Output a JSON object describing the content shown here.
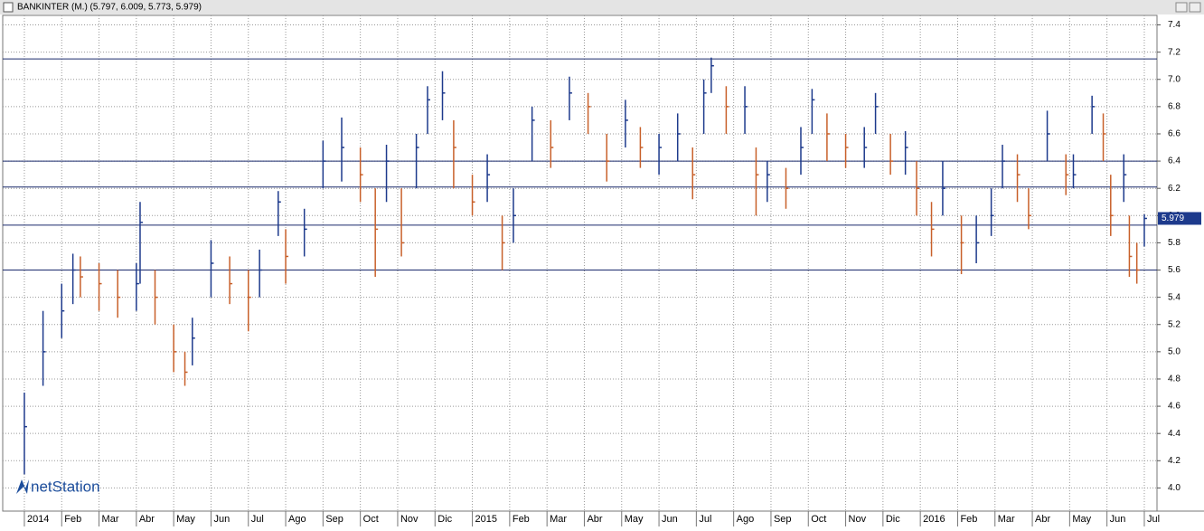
{
  "chart_data": {
    "type": "ohlc",
    "title": "BANKINTER (M.) (5.797, 6.009, 5.773, 5.979)",
    "logo": "netStation",
    "x": [
      0,
      0.5,
      1,
      1.3,
      1.5,
      2,
      2.5,
      3,
      3.1,
      3.5,
      4,
      4.3,
      4.5,
      5,
      5.5,
      6,
      6.3,
      6.8,
      7,
      7.5,
      8,
      8.5,
      9,
      9.4,
      9.7,
      10.1,
      10.5,
      10.8,
      11.2,
      11.5,
      12,
      12.4,
      12.8,
      13.1,
      13.6,
      14.1,
      14.6,
      15.1,
      15.6,
      16.1,
      16.5,
      17,
      17.5,
      17.9,
      18.2,
      18.4,
      18.8,
      19.3,
      19.6,
      19.9,
      20.4,
      20.8,
      21.1,
      21.5,
      22,
      22.5,
      22.8,
      23.2,
      23.6,
      23.9,
      24.3,
      24.6,
      25.1,
      25.5,
      25.9,
      26.2,
      26.6,
      26.9,
      27.4,
      27.9,
      28.1,
      28.6,
      28.9,
      29.1,
      29.45,
      29.6,
      29.8,
      30
    ],
    "close": [
      4.45,
      5.0,
      5.3,
      5.6,
      5.55,
      5.5,
      5.4,
      5.5,
      5.95,
      5.4,
      5.0,
      4.85,
      5.1,
      5.65,
      5.5,
      5.4,
      5.6,
      6.1,
      5.7,
      5.9,
      6.4,
      6.5,
      6.3,
      5.9,
      6.4,
      5.8,
      6.5,
      6.85,
      6.9,
      6.5,
      6.1,
      6.3,
      5.8,
      6.0,
      6.7,
      6.5,
      6.9,
      6.8,
      6.4,
      6.7,
      6.5,
      6.5,
      6.6,
      6.3,
      6.9,
      7.1,
      6.8,
      6.8,
      6.3,
      6.3,
      6.2,
      6.5,
      6.85,
      6.6,
      6.5,
      6.5,
      6.8,
      6.4,
      6.5,
      6.2,
      5.9,
      6.2,
      5.8,
      5.8,
      6.0,
      6.4,
      6.3,
      6.0,
      6.6,
      6.3,
      6.3,
      6.8,
      6.6,
      6.0,
      6.3,
      5.7,
      5.6,
      5.979
    ],
    "high": [
      4.7,
      5.3,
      5.5,
      5.72,
      5.7,
      5.65,
      5.6,
      5.65,
      6.1,
      5.6,
      5.2,
      5.0,
      5.25,
      5.82,
      5.7,
      5.6,
      5.75,
      6.18,
      5.9,
      6.05,
      6.55,
      6.72,
      6.5,
      6.2,
      6.52,
      6.2,
      6.6,
      6.95,
      7.06,
      6.7,
      6.3,
      6.45,
      6.0,
      6.2,
      6.8,
      6.7,
      7.02,
      6.9,
      6.6,
      6.85,
      6.65,
      6.6,
      6.75,
      6.5,
      7.0,
      7.16,
      6.95,
      6.95,
      6.5,
      6.4,
      6.35,
      6.65,
      6.93,
      6.75,
      6.6,
      6.65,
      6.9,
      6.6,
      6.62,
      6.4,
      6.1,
      6.4,
      6.0,
      6.0,
      6.2,
      6.52,
      6.45,
      6.2,
      6.77,
      6.45,
      6.45,
      6.88,
      6.75,
      6.3,
      6.45,
      6.0,
      5.8,
      6.009
    ],
    "low": [
      4.1,
      4.75,
      5.1,
      5.35,
      5.4,
      5.3,
      5.25,
      5.3,
      5.5,
      5.2,
      4.85,
      4.75,
      4.9,
      5.4,
      5.35,
      5.15,
      5.4,
      5.85,
      5.5,
      5.7,
      6.2,
      6.25,
      6.1,
      5.55,
      6.1,
      5.7,
      6.2,
      6.6,
      6.7,
      6.2,
      6.0,
      6.1,
      5.6,
      5.8,
      6.4,
      6.35,
      6.7,
      6.6,
      6.25,
      6.5,
      6.35,
      6.3,
      6.4,
      6.12,
      6.6,
      6.9,
      6.6,
      6.6,
      6.0,
      6.1,
      6.05,
      6.3,
      6.6,
      6.4,
      6.35,
      6.35,
      6.6,
      6.3,
      6.3,
      6.0,
      5.7,
      6.0,
      5.57,
      5.65,
      5.85,
      6.2,
      6.1,
      5.9,
      6.4,
      6.15,
      6.2,
      6.6,
      6.4,
      5.85,
      6.1,
      5.55,
      5.5,
      5.773
    ],
    "up_color": "#1d3a8c",
    "down_color": "#c8602a",
    "hlines": [
      7.15,
      6.4,
      6.21,
      5.93,
      5.6
    ],
    "hline_color": "#1a2a6c",
    "xlim": [
      -0.58,
      30.34
    ],
    "ylim": [
      3.83,
      7.47
    ],
    "yticks": [
      {
        "value": 4,
        "label": "4.0"
      },
      4.2,
      4.4,
      4.6,
      4.8,
      {
        "value": 5,
        "label": "5.0"
      },
      5.2,
      5.4,
      5.6,
      5.8,
      {
        "value": 6,
        "label": "6.0"
      },
      6.2,
      6.4,
      6.6,
      6.8,
      {
        "value": 7,
        "label": "7.0"
      },
      7.2,
      7.4
    ],
    "xticks": [
      {
        "value": 0,
        "label": "2014"
      },
      {
        "value": 1,
        "label": "Feb"
      },
      {
        "value": 2,
        "label": "Mar"
      },
      {
        "value": 3,
        "label": "Abr"
      },
      {
        "value": 4,
        "label": "May"
      },
      {
        "value": 5,
        "label": "Jun"
      },
      {
        "value": 6,
        "label": "Jul"
      },
      {
        "value": 7,
        "label": "Ago"
      },
      {
        "value": 8,
        "label": "Sep"
      },
      {
        "value": 9,
        "label": "Oct"
      },
      {
        "value": 10,
        "label": "Nov"
      },
      {
        "value": 11,
        "label": "Dic"
      },
      {
        "value": 12,
        "label": "2015"
      },
      {
        "value": 13,
        "label": "Feb"
      },
      {
        "value": 14,
        "label": "Mar"
      },
      {
        "value": 15,
        "label": "Abr"
      },
      {
        "value": 16,
        "label": "May"
      },
      {
        "value": 17,
        "label": "Jun"
      },
      {
        "value": 18,
        "label": "Jul"
      },
      {
        "value": 19,
        "label": "Ago"
      },
      {
        "value": 20,
        "label": "Sep"
      },
      {
        "value": 21,
        "label": "Oct"
      },
      {
        "value": 22,
        "label": "Nov"
      },
      {
        "value": 23,
        "label": "Dic"
      },
      {
        "value": 24,
        "label": "2016"
      },
      {
        "value": 25,
        "label": "Feb"
      },
      {
        "value": 26,
        "label": "Mar"
      },
      {
        "value": 27,
        "label": "Abr"
      },
      {
        "value": 28,
        "label": "May"
      },
      {
        "value": 29,
        "label": "Jun"
      },
      {
        "value": 30,
        "label": "Jul"
      }
    ],
    "grid": true
  }
}
